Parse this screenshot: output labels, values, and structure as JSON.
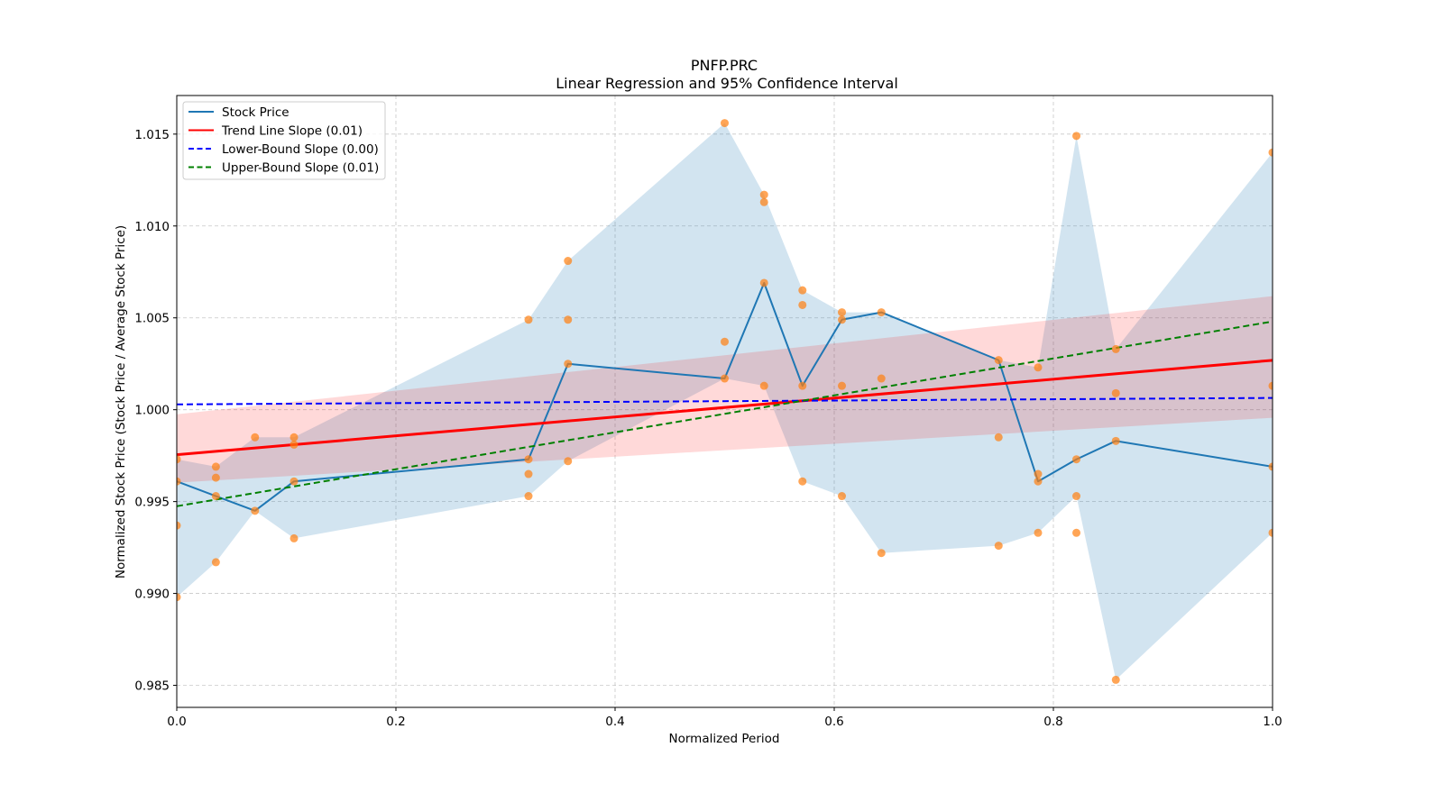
{
  "chart_data": {
    "type": "line",
    "title": "PNFP.PRC",
    "subtitle": "Linear Regression and 95% Confidence Interval",
    "xlabel": "Normalized Period",
    "ylabel": "Normalized Stock Price (Stock Price / Average Stock Price)",
    "xlim": [
      0.0,
      1.0
    ],
    "ylim": [
      0.9838,
      1.0171
    ],
    "grid": true,
    "legend_position": "top-left",
    "x_ticks": [
      "0.0",
      "0.2",
      "0.4",
      "0.6",
      "0.8",
      "1.0"
    ],
    "x_tick_values": [
      0.0,
      0.2,
      0.4,
      0.6,
      0.8,
      1.0
    ],
    "y_ticks": [
      "0.985",
      "0.990",
      "0.995",
      "1.000",
      "1.005",
      "1.010",
      "1.015"
    ],
    "y_tick_values": [
      0.985,
      0.99,
      0.995,
      1.0,
      1.005,
      1.01,
      1.015
    ],
    "colors": {
      "stock": "#1f77b4",
      "trend": "#ff0000",
      "lower": "#0000ff",
      "upper": "#008000",
      "scatter": "#ff7f0e",
      "band_stock": "#1f77b4",
      "band_trend": "#ff9999"
    },
    "legend": [
      {
        "label": "Stock Price",
        "style": "solid",
        "color": "#1f77b4"
      },
      {
        "label": "Trend Line Slope (0.01)",
        "style": "solid",
        "color": "#ff0000"
      },
      {
        "label": "Lower-Bound Slope (0.00)",
        "style": "dashed",
        "color": "#0000ff"
      },
      {
        "label": "Upper-Bound Slope (0.01)",
        "style": "dashed",
        "color": "#008000"
      }
    ],
    "series": [
      {
        "name": "Stock Price",
        "x": [
          0.0,
          0.0714,
          0.107,
          0.321,
          0.357,
          0.5,
          0.536,
          0.571,
          0.607,
          0.643,
          0.75,
          0.786,
          0.821,
          0.857,
          1.0
        ],
        "values": [
          0.9961,
          0.9945,
          0.9961,
          0.9973,
          1.0025,
          1.0017,
          1.0069,
          1.0013,
          1.0049,
          1.0053,
          1.0027,
          0.9961,
          0.9973,
          0.9983,
          0.9969
        ]
      },
      {
        "name": "Trend Line Slope (0.01)",
        "x": [
          0.0,
          1.0
        ],
        "values": [
          0.99755,
          1.00269
        ]
      },
      {
        "name": "Lower-Bound Slope (0.00)",
        "x": [
          0.0,
          1.0
        ],
        "values": [
          1.00029,
          1.00064
        ]
      },
      {
        "name": "Upper-Bound Slope (0.01)",
        "x": [
          0.0,
          1.0
        ],
        "values": [
          0.99475,
          1.0048
        ]
      }
    ],
    "stock_band": {
      "x": [
        0.0,
        0.0357,
        0.0714,
        0.107,
        0.321,
        0.357,
        0.5,
        0.536,
        0.571,
        0.607,
        0.643,
        0.75,
        0.786,
        0.821,
        0.857,
        1.0
      ],
      "upper": [
        0.9973,
        0.9969,
        0.9985,
        0.9985,
        1.0049,
        1.0081,
        1.0156,
        1.0117,
        1.0065,
        1.0053,
        1.0053,
        1.0027,
        1.0023,
        1.0149,
        1.0033,
        1.014
      ],
      "lower": [
        0.9898,
        0.9917,
        0.9945,
        0.993,
        0.9953,
        0.9972,
        1.0017,
        1.0013,
        0.9961,
        0.9953,
        0.9922,
        0.9926,
        0.9933,
        0.9953,
        0.9853,
        0.9933
      ]
    },
    "trend_band": {
      "x": [
        0.0,
        1.0
      ],
      "upper": [
        0.99975,
        1.00618
      ],
      "lower": [
        0.99603,
        0.99956
      ]
    },
    "scatter": {
      "x": [
        0.0,
        0.0,
        0.0,
        0.0,
        0.0357,
        0.0357,
        0.0357,
        0.0357,
        0.0714,
        0.0714,
        0.107,
        0.107,
        0.107,
        0.107,
        0.321,
        0.321,
        0.321,
        0.321,
        0.357,
        0.357,
        0.357,
        0.357,
        0.5,
        0.5,
        0.5,
        0.536,
        0.536,
        0.536,
        0.536,
        0.571,
        0.571,
        0.571,
        0.571,
        0.607,
        0.607,
        0.607,
        0.607,
        0.643,
        0.643,
        0.643,
        0.75,
        0.75,
        0.75,
        0.786,
        0.786,
        0.786,
        0.786,
        0.821,
        0.821,
        0.821,
        0.821,
        0.857,
        0.857,
        0.857,
        0.857,
        1.0,
        1.0,
        1.0,
        1.0
      ],
      "y": [
        0.9973,
        0.9961,
        0.9937,
        0.9898,
        0.9969,
        0.9963,
        0.9953,
        0.9917,
        0.9985,
        0.9945,
        0.9985,
        0.9981,
        0.9961,
        0.993,
        1.0049,
        0.9973,
        0.9965,
        0.9953,
        1.0081,
        1.0049,
        1.0025,
        0.9972,
        1.0156,
        1.0037,
        1.0017,
        1.0117,
        1.0113,
        1.0069,
        1.0013,
        1.0065,
        1.0057,
        1.0013,
        0.9961,
        1.0053,
        1.0049,
        1.0013,
        0.9953,
        1.0053,
        1.0017,
        0.9922,
        1.0027,
        0.9985,
        0.9926,
        1.0023,
        0.9965,
        0.9961,
        0.9933,
        1.0149,
        0.9973,
        0.9953,
        0.9933,
        1.0033,
        1.0009,
        0.9983,
        0.9853,
        1.014,
        1.0013,
        0.9969,
        0.9933
      ]
    }
  }
}
